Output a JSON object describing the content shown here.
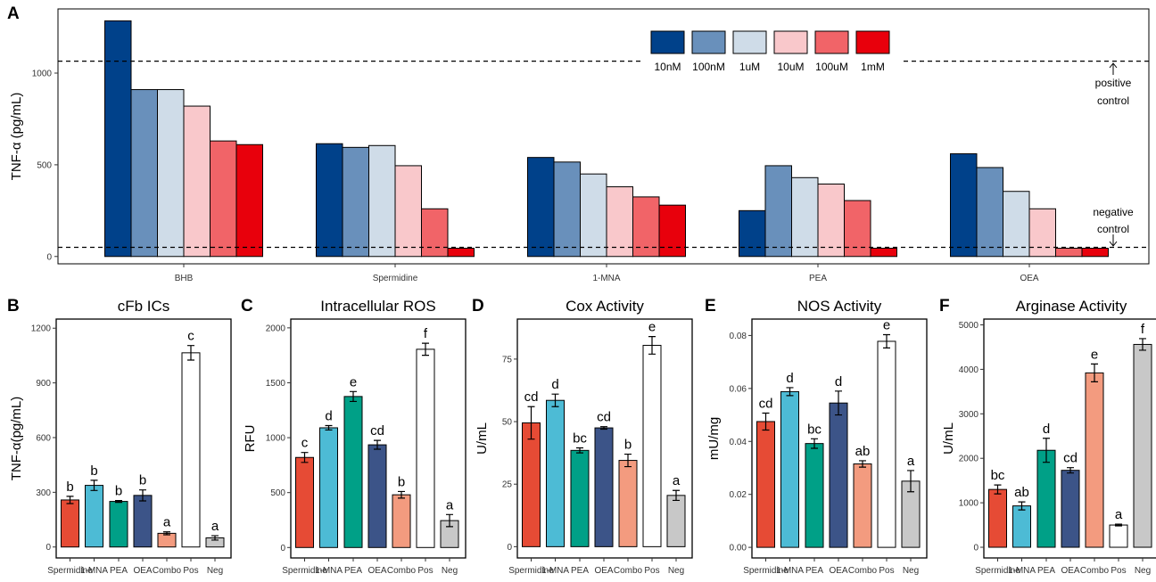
{
  "panel_a": {
    "letter": "A",
    "ylabel": "TNF-α (pg/mL)",
    "legend": [
      {
        "label": "10nM",
        "color": "#00418A"
      },
      {
        "label": "100nM",
        "color": "#6990BB"
      },
      {
        "label": "1uM",
        "color": "#CFDCE8"
      },
      {
        "label": "10uM",
        "color": "#F9C8CB"
      },
      {
        "label": "100uM",
        "color": "#F16468"
      },
      {
        "label": "1mM",
        "color": "#E8000C"
      }
    ],
    "positive_control_label": [
      "positive",
      "control"
    ],
    "negative_control_label": [
      "negative",
      "control"
    ]
  },
  "chart_data": [
    {
      "type": "bar",
      "panel": "A",
      "categories": [
        "BHB",
        "Spermidine",
        "1-MNA",
        "PEA",
        "OEA"
      ],
      "series": [
        {
          "name": "10nM",
          "values": [
            1285,
            615,
            540,
            250,
            560
          ]
        },
        {
          "name": "100nM",
          "values": [
            910,
            595,
            515,
            495,
            485
          ]
        },
        {
          "name": "1uM",
          "values": [
            910,
            605,
            450,
            430,
            355
          ]
        },
        {
          "name": "10uM",
          "values": [
            820,
            495,
            380,
            395,
            260
          ]
        },
        {
          "name": "100uM",
          "values": [
            630,
            260,
            325,
            305,
            45
          ]
        },
        {
          "name": "1mM",
          "values": [
            610,
            45,
            280,
            45,
            45
          ]
        }
      ],
      "reference_lines": {
        "positive control": 1065,
        "negative control": 50
      },
      "xlabel": "",
      "ylabel": "TNF-α (pg/mL)",
      "ylim": [
        -40,
        1350
      ],
      "yticks": [
        0,
        500,
        1000
      ],
      "legend_position": "top-right",
      "grid": false
    },
    {
      "type": "bar",
      "panel": "B",
      "title": "cFb ICs",
      "categories": [
        "Spermidine",
        "1-MNA",
        "PEA",
        "OEA",
        "Combo",
        "Pos",
        "Neg"
      ],
      "values": [
        258,
        338,
        250,
        283,
        75,
        1065,
        50
      ],
      "errors": [
        20,
        28,
        5,
        30,
        8,
        40,
        12
      ],
      "labels": [
        "b",
        "b",
        "b",
        "b",
        "a",
        "c",
        "a"
      ],
      "ylabel": "TNF-α(pg/mL)",
      "ylim": [
        -60,
        1250
      ],
      "yticks": [
        0,
        300,
        600,
        900,
        1200
      ]
    },
    {
      "type": "bar",
      "panel": "C",
      "title": "Intracellular ROS",
      "categories": [
        "Spermidine",
        "1-MNA",
        "PEA",
        "OEA",
        "Combo",
        "Pos",
        "Neg"
      ],
      "values": [
        820,
        1090,
        1375,
        935,
        480,
        1805,
        245
      ],
      "errors": [
        45,
        20,
        45,
        40,
        30,
        55,
        55
      ],
      "labels": [
        "c",
        "d",
        "e",
        "cd",
        "b",
        "f",
        "a"
      ],
      "ylabel": "RFU",
      "ylim": [
        -95,
        2080
      ],
      "yticks": [
        0,
        500,
        1000,
        1500,
        2000
      ]
    },
    {
      "type": "bar",
      "panel": "D",
      "title": "Cox Activity",
      "categories": [
        "Spermidine",
        "1-MNA",
        "PEA",
        "OEA",
        "Combo",
        "Pos",
        "Neg"
      ],
      "values": [
        49.5,
        58.5,
        38.5,
        47.5,
        34.5,
        80.5,
        20.5
      ],
      "errors": [
        6.5,
        2.5,
        1,
        0.5,
        2.5,
        3.5,
        2
      ],
      "labels": [
        "cd",
        "d",
        "bc",
        "cd",
        "b",
        "e",
        "a"
      ],
      "ylabel": "U/mL",
      "ylim": [
        -4.5,
        91
      ],
      "yticks": [
        0,
        25,
        50,
        75
      ]
    },
    {
      "type": "bar",
      "panel": "E",
      "title": "NOS Activity",
      "categories": [
        "Spermidine",
        "1-MNA",
        "PEA",
        "OEA",
        "Combo",
        "Pos",
        "Neg"
      ],
      "values": [
        0.0475,
        0.0588,
        0.0392,
        0.0545,
        0.0315,
        0.0778,
        0.025
      ],
      "errors": [
        0.0032,
        0.0015,
        0.0018,
        0.0045,
        0.0012,
        0.0025,
        0.004
      ],
      "labels": [
        "cd",
        "d",
        "bc",
        "d",
        "ab",
        "e",
        "a"
      ],
      "ylabel": "mU/mg",
      "ylim": [
        -0.004,
        0.0862
      ],
      "yticks": [
        0.0,
        0.02,
        0.04,
        0.06,
        0.08
      ],
      "ytick_labels": [
        "0.00",
        "0.02",
        "0.04",
        "0.06",
        "0.08"
      ]
    },
    {
      "type": "bar",
      "panel": "F",
      "title": "Arginase Activity",
      "categories": [
        "Spermidine",
        "1-MNA",
        "PEA",
        "OEA",
        "Combo",
        "Pos",
        "Neg"
      ],
      "values": [
        1300,
        930,
        2180,
        1730,
        3920,
        500,
        4560
      ],
      "errors": [
        100,
        90,
        270,
        60,
        200,
        20,
        130
      ],
      "labels": [
        "bc",
        "ab",
        "d",
        "cd",
        "e",
        "a",
        "f"
      ],
      "ylabel": "U/mL",
      "ylim": [
        -240,
        5130
      ],
      "yticks": [
        0,
        1000,
        2000,
        3000,
        4000,
        5000
      ]
    }
  ],
  "bar_colors": [
    "#E64B35",
    "#4DBBD5",
    "#00A087",
    "#3C5488",
    "#F39B7F",
    "#FFFFFF",
    "#C8C8C8"
  ]
}
